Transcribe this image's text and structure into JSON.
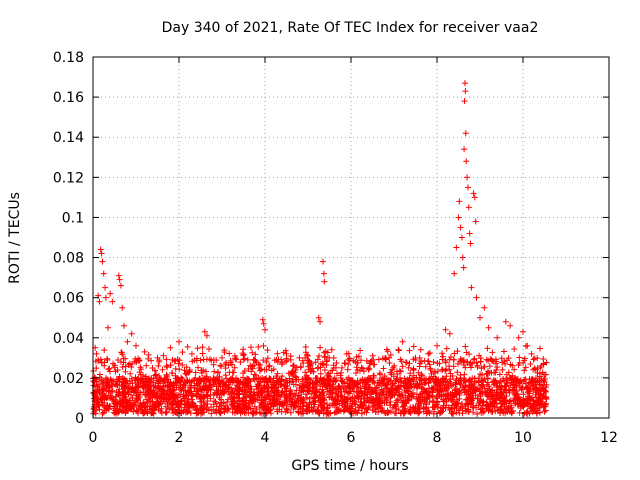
{
  "chart_data": {
    "type": "scatter",
    "title": "Day 340 of 2021, Rate Of TEC Index for receiver vaa2",
    "xlabel": "GPS time / hours",
    "ylabel": "ROTI / TECUs",
    "xlim": [
      0,
      12
    ],
    "ylim": [
      0,
      0.18
    ],
    "x_ticks": [
      "0",
      "2",
      "4",
      "6",
      "8",
      "10",
      "12"
    ],
    "y_ticks": [
      "0",
      "0.02",
      "0.04",
      "0.06",
      "0.08",
      "0.1",
      "0.12",
      "0.14",
      "0.16",
      "0.18"
    ],
    "grid": true,
    "marker": "+",
    "series_color": "#ff0000",
    "background_band": {
      "x_range": [
        0,
        10.55
      ],
      "y_range": [
        0,
        0.02
      ],
      "note": "dense scatter of thousands of points"
    },
    "highlight_points": [
      {
        "x": 0.05,
        "y": 0.035
      },
      {
        "x": 0.08,
        "y": 0.032
      },
      {
        "x": 0.12,
        "y": 0.061
      },
      {
        "x": 0.15,
        "y": 0.058
      },
      {
        "x": 0.18,
        "y": 0.084
      },
      {
        "x": 0.2,
        "y": 0.082
      },
      {
        "x": 0.22,
        "y": 0.078
      },
      {
        "x": 0.25,
        "y": 0.072
      },
      {
        "x": 0.28,
        "y": 0.065
      },
      {
        "x": 0.3,
        "y": 0.06
      },
      {
        "x": 0.35,
        "y": 0.045
      },
      {
        "x": 0.4,
        "y": 0.062
      },
      {
        "x": 0.45,
        "y": 0.058
      },
      {
        "x": 0.6,
        "y": 0.071
      },
      {
        "x": 0.62,
        "y": 0.069
      },
      {
        "x": 0.65,
        "y": 0.066
      },
      {
        "x": 0.68,
        "y": 0.055
      },
      {
        "x": 0.72,
        "y": 0.046
      },
      {
        "x": 0.8,
        "y": 0.038
      },
      {
        "x": 0.9,
        "y": 0.042
      },
      {
        "x": 1.0,
        "y": 0.036
      },
      {
        "x": 1.2,
        "y": 0.033
      },
      {
        "x": 1.5,
        "y": 0.03
      },
      {
        "x": 1.8,
        "y": 0.035
      },
      {
        "x": 2.0,
        "y": 0.038
      },
      {
        "x": 2.3,
        "y": 0.032
      },
      {
        "x": 2.6,
        "y": 0.043
      },
      {
        "x": 2.65,
        "y": 0.041
      },
      {
        "x": 3.0,
        "y": 0.03
      },
      {
        "x": 3.3,
        "y": 0.031
      },
      {
        "x": 3.6,
        "y": 0.029
      },
      {
        "x": 3.95,
        "y": 0.049
      },
      {
        "x": 3.97,
        "y": 0.047
      },
      {
        "x": 4.0,
        "y": 0.044
      },
      {
        "x": 4.3,
        "y": 0.028
      },
      {
        "x": 4.5,
        "y": 0.032
      },
      {
        "x": 4.8,
        "y": 0.03
      },
      {
        "x": 5.0,
        "y": 0.031
      },
      {
        "x": 5.25,
        "y": 0.05
      },
      {
        "x": 5.28,
        "y": 0.048
      },
      {
        "x": 5.35,
        "y": 0.078
      },
      {
        "x": 5.37,
        "y": 0.072
      },
      {
        "x": 5.38,
        "y": 0.068
      },
      {
        "x": 5.6,
        "y": 0.03
      },
      {
        "x": 5.9,
        "y": 0.032
      },
      {
        "x": 6.1,
        "y": 0.028
      },
      {
        "x": 6.4,
        "y": 0.025
      },
      {
        "x": 6.8,
        "y": 0.03
      },
      {
        "x": 7.1,
        "y": 0.034
      },
      {
        "x": 7.2,
        "y": 0.038
      },
      {
        "x": 7.5,
        "y": 0.03
      },
      {
        "x": 7.8,
        "y": 0.032
      },
      {
        "x": 8.0,
        "y": 0.036
      },
      {
        "x": 8.2,
        "y": 0.044
      },
      {
        "x": 8.3,
        "y": 0.042
      },
      {
        "x": 8.4,
        "y": 0.072
      },
      {
        "x": 8.45,
        "y": 0.085
      },
      {
        "x": 8.5,
        "y": 0.1
      },
      {
        "x": 8.52,
        "y": 0.108
      },
      {
        "x": 8.55,
        "y": 0.095
      },
      {
        "x": 8.58,
        "y": 0.09
      },
      {
        "x": 8.6,
        "y": 0.08
      },
      {
        "x": 8.62,
        "y": 0.075
      },
      {
        "x": 8.63,
        "y": 0.134
      },
      {
        "x": 8.64,
        "y": 0.158
      },
      {
        "x": 8.65,
        "y": 0.167
      },
      {
        "x": 8.66,
        "y": 0.163
      },
      {
        "x": 8.67,
        "y": 0.142
      },
      {
        "x": 8.68,
        "y": 0.128
      },
      {
        "x": 8.7,
        "y": 0.12
      },
      {
        "x": 8.72,
        "y": 0.115
      },
      {
        "x": 8.74,
        "y": 0.105
      },
      {
        "x": 8.76,
        "y": 0.092
      },
      {
        "x": 8.78,
        "y": 0.087
      },
      {
        "x": 8.8,
        "y": 0.065
      },
      {
        "x": 8.85,
        "y": 0.112
      },
      {
        "x": 8.88,
        "y": 0.11
      },
      {
        "x": 8.9,
        "y": 0.098
      },
      {
        "x": 8.92,
        "y": 0.06
      },
      {
        "x": 9.0,
        "y": 0.05
      },
      {
        "x": 9.1,
        "y": 0.055
      },
      {
        "x": 9.2,
        "y": 0.045
      },
      {
        "x": 9.4,
        "y": 0.04
      },
      {
        "x": 9.6,
        "y": 0.048
      },
      {
        "x": 9.7,
        "y": 0.046
      },
      {
        "x": 9.9,
        "y": 0.04
      },
      {
        "x": 10.0,
        "y": 0.043
      },
      {
        "x": 10.1,
        "y": 0.036
      },
      {
        "x": 10.2,
        "y": 0.032
      },
      {
        "x": 10.4,
        "y": 0.025
      },
      {
        "x": 10.5,
        "y": 0.018
      }
    ]
  }
}
